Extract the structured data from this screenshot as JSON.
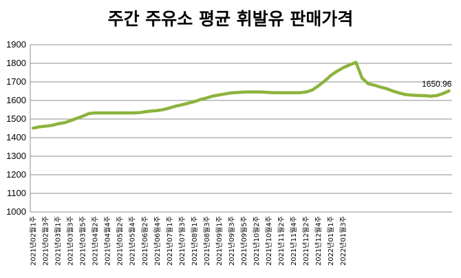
{
  "chart_data": {
    "type": "line",
    "title": "주간 주유소 평균 휘발유 판매가격",
    "xlabel": "",
    "ylabel": "",
    "ylim": [
      1000,
      1900
    ],
    "yticks": [
      1000,
      1100,
      1200,
      1300,
      1400,
      1500,
      1600,
      1700,
      1800,
      1900
    ],
    "grid": true,
    "legend": "none",
    "x_labels": [
      "2021년02월1주",
      "2021년02월3주",
      "2021년03월1주",
      "2021년03월3주",
      "2021년03월5주",
      "2021년04월2주",
      "2021년04월4주",
      "2021년05월2주",
      "2021년05월4주",
      "2021년06월2주",
      "2021년06월4주",
      "2021년07월1주",
      "2021년07월3주",
      "2021년08월1주",
      "2021년08월3주",
      "2021년09월1주",
      "2021년09월3주",
      "2021년09월5주",
      "2021년10월2주",
      "2021년10월4주",
      "2021년11월2주",
      "2021년11월4주",
      "2021년12월2주",
      "2021년12월4주",
      "2022년01월1주",
      "2022년01월3주"
    ],
    "series": [
      {
        "name": "",
        "color": "#8db33d",
        "values": [
          1451,
          1458,
          1462,
          1466,
          1475,
          1480,
          1491,
          1504,
          1516,
          1530,
          1533,
          1533,
          1533,
          1533,
          1533,
          1533,
          1533,
          1534,
          1539,
          1543,
          1546,
          1551,
          1560,
          1570,
          1577,
          1586,
          1594,
          1606,
          1614,
          1624,
          1630,
          1636,
          1641,
          1643,
          1645,
          1646,
          1646,
          1645,
          1643,
          1642,
          1642,
          1642,
          1642,
          1642,
          1646,
          1657,
          1680,
          1706,
          1736,
          1758,
          1777,
          1792,
          1805,
          1720,
          1690,
          1682,
          1672,
          1663,
          1650,
          1640,
          1632,
          1629,
          1627,
          1626,
          1623,
          1626,
          1637,
          1651
        ]
      }
    ],
    "data_labels": [
      {
        "index": 67,
        "text": "1650.96"
      }
    ]
  }
}
